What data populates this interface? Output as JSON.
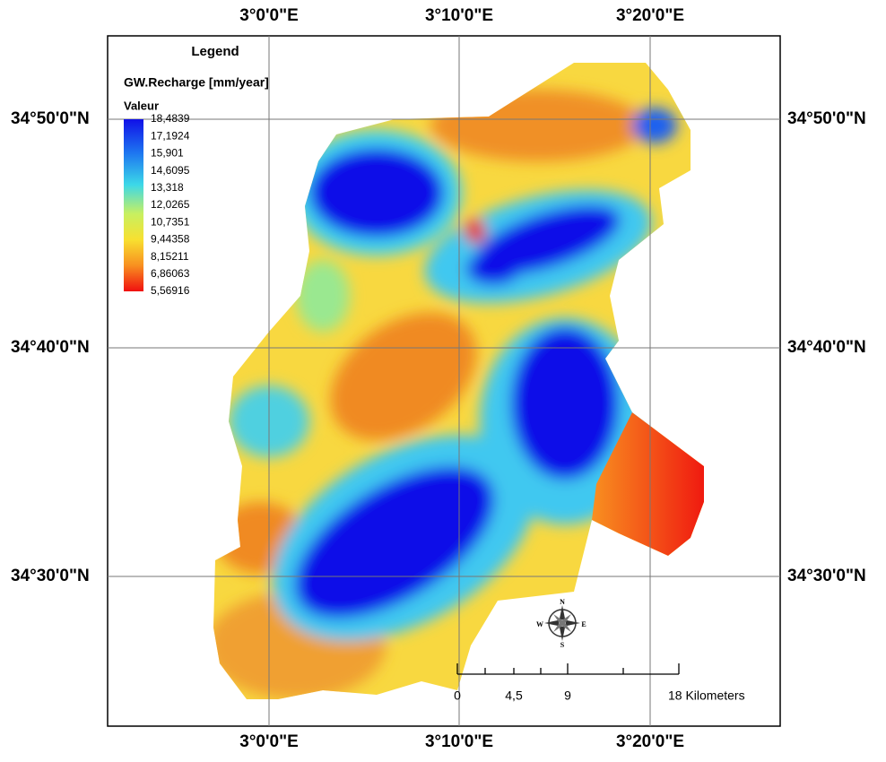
{
  "coordinates": {
    "top": [
      "3°0'0\"E",
      "3°10'0\"E",
      "3°20'0\"E"
    ],
    "bottom": [
      "3°0'0\"E",
      "3°10'0\"E",
      "3°20'0\"E"
    ],
    "left": [
      "34°50'0\"N",
      "34°40'0\"N",
      "34°30'0\"N"
    ],
    "right": [
      "34°50'0\"N",
      "34°40'0\"N",
      "34°30'0\"N"
    ]
  },
  "legend": {
    "title": "Legend",
    "layer": "GW.Recharge [mm/year]",
    "field": "Valeur",
    "values": [
      "18,4839",
      "17,1924",
      "15,901",
      "14,6095",
      "13,318",
      "12,0265",
      "10,7351",
      "9,44358",
      "8,15211",
      "6,86063",
      "5,56916"
    ]
  },
  "scale_bar": {
    "labels": [
      "0",
      "4,5",
      "9",
      "18 Kilometers"
    ]
  },
  "compass": {
    "N": "N",
    "E": "E",
    "S": "S",
    "W": "W"
  }
}
